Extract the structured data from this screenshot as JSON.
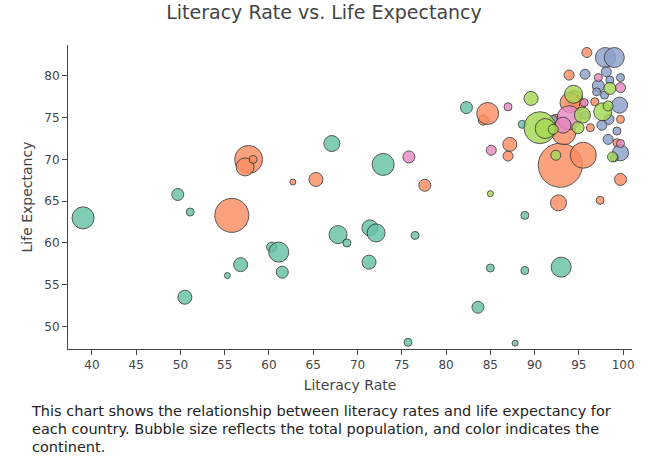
{
  "chart_data": {
    "type": "scatter",
    "marker": "bubble",
    "title": "Literacy Rate vs. Life Expectancy",
    "xlabel": "Literacy Rate",
    "ylabel": "Life Expectancy",
    "caption": "This chart shows the relationship between literacy rates and life expectancy for each country. Bubble size reflects the total population, and color indicates the continent.",
    "xlim": [
      37.3,
      101
    ],
    "ylim": [
      47.3,
      83.7
    ],
    "xticks": [
      40,
      45,
      50,
      55,
      60,
      65,
      70,
      75,
      80,
      85,
      90,
      95,
      100
    ],
    "yticks": [
      50,
      55,
      60,
      65,
      70,
      75,
      80
    ],
    "grid": false,
    "series": [
      {
        "color": "#66c2a5",
        "x": [
          39.0,
          49.7,
          51.1,
          50.5,
          55.3,
          56.8,
          60.3,
          61.1,
          61.5,
          67.1,
          67.8,
          68.8,
          72.9,
          71.4,
          72.1,
          71.3,
          76.5,
          82.3,
          83.6,
          75.7,
          85.0,
          88.9,
          87.8,
          93.0,
          88.9,
          88.6
        ],
        "values": [
          63.0,
          65.8,
          63.7,
          53.5,
          56.1,
          57.4,
          59.5,
          58.9,
          56.5,
          71.9,
          61.0,
          60.0,
          69.4,
          61.8,
          61.2,
          57.7,
          60.9,
          76.2,
          52.3,
          48.1,
          57.0,
          56.7,
          48.0,
          57.1,
          63.3,
          74.2
        ],
        "sizes": [
          363,
          108,
          48,
          147,
          27,
          147,
          75,
          300,
          108,
          192,
          243,
          48,
          363,
          192,
          243,
          147,
          48,
          108,
          108,
          48,
          48,
          48,
          27,
          300,
          48,
          48
        ]
      },
      {
        "color": "#fc8d62",
        "x": [
          57.7,
          57.3,
          58.2,
          55.8,
          62.7,
          65.3,
          77.6,
          84.2,
          84.7,
          87.2,
          87.0,
          92.7,
          92.9,
          95.5,
          93.3,
          94.5,
          95.1,
          94.0,
          95.9,
          93.9,
          99.7,
          97.4,
          96.3,
          92.4,
          99.3,
          99.7,
          96.8
        ],
        "values": [
          70.0,
          69.1,
          70.0,
          63.3,
          67.3,
          67.6,
          66.9,
          74.7,
          75.5,
          71.8,
          70.4,
          64.8,
          69.3,
          70.5,
          73.2,
          77.3,
          76.6,
          76.8,
          82.8,
          80.1,
          67.6,
          65.1,
          73.8,
          74.8,
          72.0,
          74.8,
          76.9
        ],
        "sizes": [
          588,
          243,
          48,
          867,
          27,
          147,
          108,
          75,
          363,
          147,
          75,
          192,
          1452,
          507,
          432,
          192,
          108,
          300,
          75,
          75,
          108,
          48,
          48,
          75,
          48,
          48,
          48
        ]
      },
      {
        "color": "#8da0cb",
        "x": [
          98.0,
          99.0,
          95.7,
          97.2,
          98.1,
          99.7,
          98.5,
          99.6,
          99.7,
          99.0,
          97.6,
          98.3,
          99.3,
          98.4,
          97.9,
          97.0,
          95.7,
          92.1
        ],
        "values": [
          82.2,
          82.2,
          80.2,
          78.8,
          80.5,
          79.8,
          79.5,
          76.5,
          70.8,
          70.2,
          74.1,
          72.4,
          73.4,
          74.8,
          77.7,
          78.1,
          75.3,
          74.8
        ],
        "sizes": [
          300,
          300,
          75,
          108,
          75,
          48,
          48,
          192,
          192,
          48,
          75,
          75,
          48,
          75,
          48,
          48,
          48,
          48
        ]
      },
      {
        "color": "#e78ac3",
        "x": [
          75.8,
          85.1,
          87.0,
          93.9,
          93.2,
          99.7,
          99.7,
          95.6,
          97.2
        ],
        "values": [
          70.3,
          71.1,
          76.3,
          75.0,
          74.1,
          78.6,
          71.9,
          76.8,
          79.8
        ],
        "sizes": [
          108,
          75,
          48,
          432,
          192,
          75,
          48,
          48,
          48
        ]
      },
      {
        "color": "#a6d854",
        "x": [
          90.6,
          89.6,
          91.2,
          94.4,
          95.4,
          97.7,
          98.5,
          94.9,
          98.3,
          92.4,
          98.8,
          85.0,
          92.1
        ],
        "values": [
          73.8,
          77.3,
          73.7,
          77.8,
          75.3,
          75.7,
          78.5,
          73.8,
          76.4,
          70.5,
          70.3,
          65.9,
          73.6
        ],
        "sizes": [
          768,
          147,
          300,
          243,
          192,
          243,
          108,
          108,
          75,
          75,
          75,
          27,
          75
        ]
      }
    ]
  }
}
